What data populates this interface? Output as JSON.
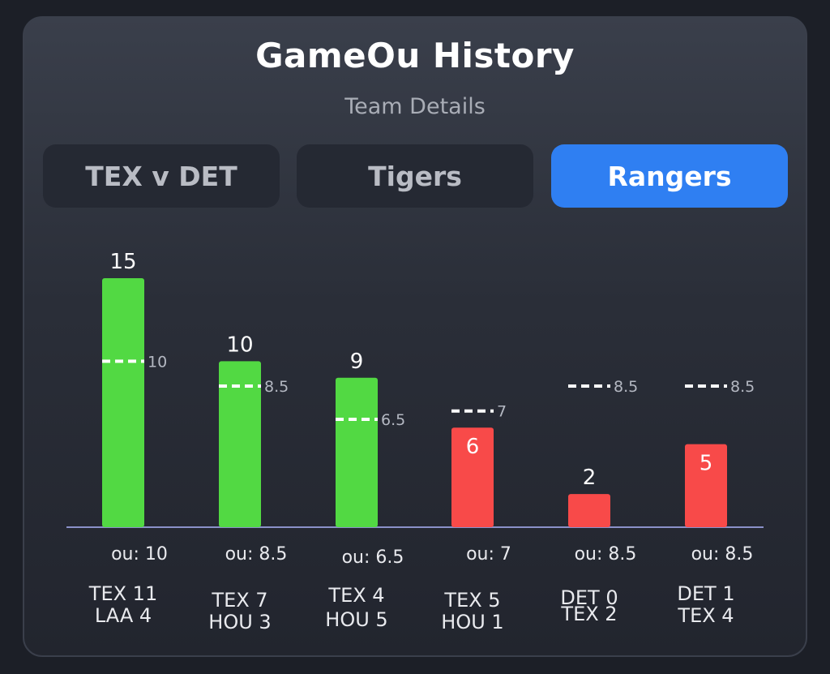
{
  "header": {
    "title": "GameOu History",
    "subtitle": "Team Details"
  },
  "tabs": [
    {
      "label": "TEX v DET",
      "active": false
    },
    {
      "label": "Tigers",
      "active": false
    },
    {
      "label": "Rangers",
      "active": true
    }
  ],
  "colors": {
    "over": "#52d943",
    "under": "#f84a49",
    "line": "#ffffff",
    "accent": "#2f7ff2"
  },
  "chart_data": {
    "type": "bar",
    "title": "GameOu History",
    "ylim": [
      0,
      15
    ],
    "grid": false,
    "categories": [
      "TEX 11 LAA 4",
      "TEX 7 HOU 3",
      "TEX 4 HOU 5",
      "TEX 5 HOU 1",
      "DET 0 TEX 2",
      "DET 1 TEX 4"
    ],
    "values": [
      15,
      10,
      9,
      6,
      2,
      5
    ],
    "ou_lines": [
      10,
      8.5,
      6.5,
      7,
      8.5,
      8.5
    ],
    "ou_labels": [
      "ou: 10",
      "ou: 8.5",
      "ou: 6.5",
      "ou: 7",
      "ou: 8.5",
      "ou: 8.5"
    ],
    "results": [
      "over",
      "over",
      "over",
      "under",
      "under",
      "under"
    ],
    "games": [
      {
        "line1": "TEX 11",
        "line2": "LAA 4"
      },
      {
        "line1": "TEX 7",
        "line2": "HOU 3"
      },
      {
        "line1": "TEX 4",
        "line2": "HOU 5"
      },
      {
        "line1": "TEX 5",
        "line2": "HOU 1"
      },
      {
        "line1": "DET 0",
        "line2": "TEX 2"
      },
      {
        "line1": "DET 1",
        "line2": "TEX 4"
      }
    ]
  }
}
